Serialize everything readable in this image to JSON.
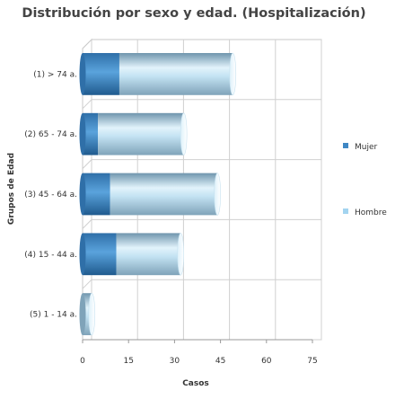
{
  "chart_data": {
    "type": "bar",
    "orientation": "horizontal",
    "stacked": true,
    "style": "3d-cylinder",
    "title": "Distribución por sexo y edad. (Hospitalización)",
    "xlabel": "Casos",
    "ylabel": "Grupos de Edad",
    "categories": [
      "(1) > 74 a.",
      "(2) 65 - 74 a.",
      "(3) 45 - 64 a.",
      "(4) 15 - 44 a.",
      "(5) 1 - 14 a."
    ],
    "series": [
      {
        "name": "Mujer",
        "values": [
          12,
          5,
          9,
          11,
          0
        ],
        "color": "#3f87c4"
      },
      {
        "name": "Hombre",
        "values": [
          37,
          28,
          35,
          21,
          3
        ],
        "color": "#a3d4f0"
      }
    ],
    "xlim": [
      0,
      75
    ],
    "xticks": [
      "0",
      "15",
      "30",
      "45",
      "60",
      "75"
    ],
    "grid": true,
    "legend_position": "right"
  }
}
